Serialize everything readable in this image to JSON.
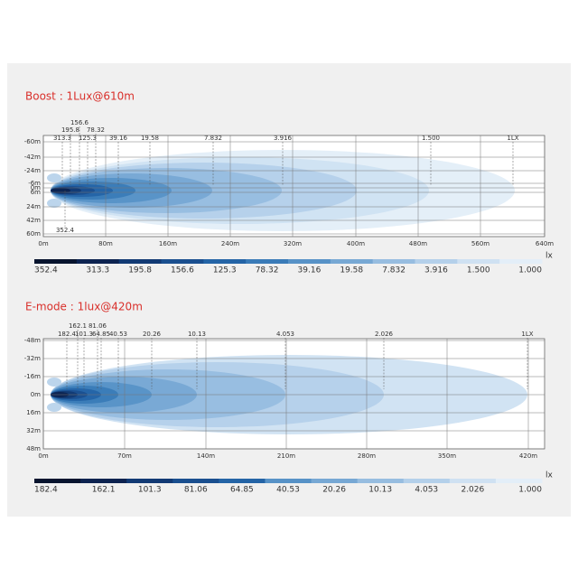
{
  "panels": [
    {
      "title": "Boost : 1Lux@610m",
      "y_labels": [
        "-60m",
        "-42m",
        "-24m",
        "-6m",
        "0m",
        "6m",
        "24m",
        "42m",
        "60m"
      ],
      "x_labels": [
        "0m",
        "80m",
        "160m",
        "240m",
        "320m",
        "400m",
        "480m",
        "560m",
        "640m"
      ],
      "isolux_labels": [
        "313.3",
        "195.8",
        "156.6",
        "78.32",
        "125.3",
        "39.16",
        "19.58",
        "7.832",
        "3.916",
        "1.500",
        "1LX",
        "352.4"
      ],
      "legend_unit": "lx",
      "legend_labels": [
        "352.4",
        "313.3",
        "195.8",
        "156.6",
        "125.3",
        "78.32",
        "39.16",
        "19.58",
        "7.832",
        "3.916",
        "1.500",
        "1.000"
      ]
    },
    {
      "title": "E-mode : 1lux@420m",
      "y_labels": [
        "-48m",
        "-32m",
        "-16m",
        "0m",
        "16m",
        "32m",
        "48m"
      ],
      "x_labels": [
        "0m",
        "70m",
        "140m",
        "210m",
        "280m",
        "350m",
        "420m"
      ],
      "isolux_labels": [
        "162.1",
        "81.06",
        "182.4",
        "101.3",
        "64.85",
        "40.53",
        "20.26",
        "10.13",
        "4.053",
        "2.026",
        "1LX"
      ],
      "legend_unit": "lx",
      "legend_labels": [
        "182.4",
        "162.1",
        "101.3",
        "81.06",
        "64.85",
        "40.53",
        "20.26",
        "10.13",
        "4.053",
        "2.026",
        "1.000"
      ]
    }
  ]
}
